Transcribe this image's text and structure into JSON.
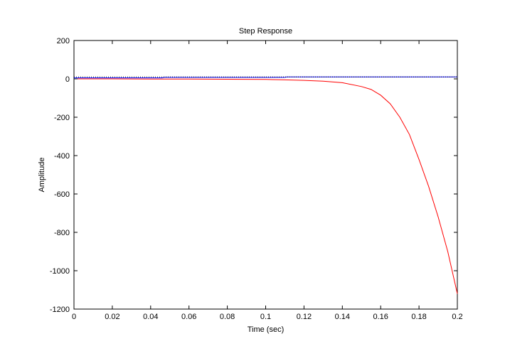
{
  "chart_data": {
    "type": "line",
    "title": "Step Response",
    "xlabel": "Time (sec)",
    "ylabel": "Amplitude",
    "xlim": [
      0,
      0.2
    ],
    "ylim": [
      -1200,
      200
    ],
    "xticks": [
      0,
      0.02,
      0.04,
      0.06,
      0.08,
      0.1,
      0.12,
      0.14,
      0.16,
      0.18,
      0.2
    ],
    "xtick_labels": [
      "0",
      "0.02",
      "0.04",
      "0.06",
      "0.08",
      "0.1",
      "0.12",
      "0.14",
      "0.16",
      "0.18",
      "0.2"
    ],
    "yticks": [
      200,
      0,
      -200,
      -400,
      -600,
      -800,
      -1000,
      -1200
    ],
    "ytick_labels": [
      "200",
      "0",
      "-200",
      "-400",
      "-600",
      "-800",
      "-1000",
      "-1200"
    ],
    "grid": false,
    "legend": false,
    "series": [
      {
        "color": "#ff0000",
        "style": "solid",
        "x": [
          0,
          0.02,
          0.04,
          0.06,
          0.08,
          0.1,
          0.11,
          0.12,
          0.13,
          0.14,
          0.15,
          0.155,
          0.16,
          0.165,
          0.17,
          0.175,
          0.18,
          0.185,
          0.19,
          0.195,
          0.2
        ],
        "y": [
          0,
          0,
          -1,
          -1,
          -2,
          -3,
          -5,
          -8,
          -12,
          -20,
          -40,
          -55,
          -85,
          -130,
          -200,
          -290,
          -420,
          -560,
          -720,
          -900,
          -1120
        ]
      },
      {
        "color": "#0000ff",
        "style": "solid",
        "x": [
          0,
          0.046,
          0.047,
          0.11,
          0.111,
          0.2
        ],
        "y": [
          5,
          5,
          8,
          8,
          10,
          10
        ]
      },
      {
        "color": "#000000",
        "style": "dotted",
        "x": [
          0,
          0.2
        ],
        "y": [
          10,
          10
        ]
      }
    ]
  }
}
